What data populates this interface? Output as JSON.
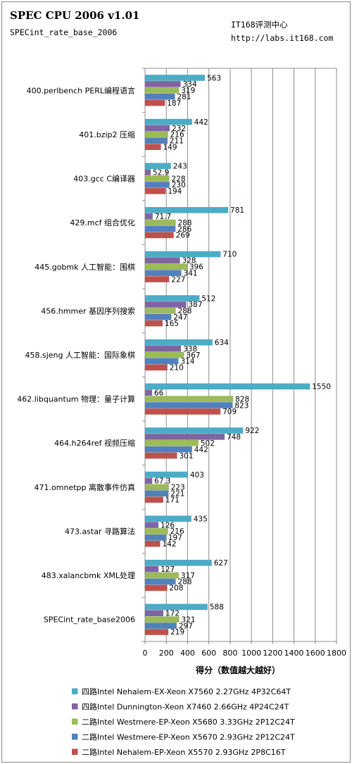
{
  "header": {
    "title": "SPEC CPU 2006 v1.01",
    "subtitle": "SPECint_rate_base_2006",
    "source_name": "IT168评测中心",
    "source_url": "http://labs.it168.com"
  },
  "chart_data": {
    "type": "bar",
    "orientation": "horizontal",
    "title": "SPEC CPU 2006 v1.01",
    "subtitle": "SPECint_rate_base_2006",
    "xlabel": "得分（数值越大越好）",
    "ylabel": "",
    "xlim": [
      0,
      1800
    ],
    "xticks": [
      0,
      200,
      400,
      600,
      800,
      1000,
      1200,
      1400,
      1600,
      1800
    ],
    "grid": true,
    "legend_position": "bottom",
    "categories": [
      "400.perlbench PERL编程语言",
      "401.bzip2 压缩",
      "403.gcc C编译器",
      "429.mcf 组合优化",
      "445.gobmk 人工智能：围棋",
      "456.hmmer 基因序列搜索",
      "458.sjeng 人工智能：国际象棋",
      "462.libquantum 物理：量子计算",
      "464.h264ref 视频压缩",
      "471.omnetpp 离散事件仿真",
      "473.astar 寻路算法",
      "483.xalancbmk XML处理",
      "SPECint_rate_base2006"
    ],
    "series": [
      {
        "name": "四路Intel Nehalem-EX-Xeon X7560 2.27GHz 4P32C64T",
        "color": "#4bacc6",
        "values": [
          563,
          442,
          243,
          781,
          710,
          512,
          634,
          1550,
          922,
          403,
          435,
          627,
          588
        ],
        "labels": [
          "563",
          "442",
          "243",
          "781",
          "710",
          "512",
          "634",
          "1550",
          "922",
          "403",
          "435",
          "627",
          "588"
        ]
      },
      {
        "name": "四路Intel Dunnington-Xeon X7460 2.66GHz 4P24C24T",
        "color": "#8064a2",
        "values": [
          334,
          232,
          52.9,
          71.7,
          328,
          387,
          338,
          66,
          748,
          67.3,
          126,
          127,
          172
        ],
        "labels": [
          "334",
          "232",
          "52.9",
          "71.7",
          "328",
          "387",
          "338",
          "66",
          "748",
          "67.3",
          "126",
          "127",
          "172"
        ]
      },
      {
        "name": "二路Intel Westmere-EP-Xeon X5680 3.33GHz 2P12C24T",
        "color": "#9bbb59",
        "values": [
          319,
          216,
          228,
          288,
          396,
          288,
          367,
          828,
          502,
          223,
          216,
          317,
          321
        ],
        "labels": [
          "319",
          "216",
          "228",
          "288",
          "396",
          "288",
          "367",
          "828",
          "502",
          "223",
          "216",
          "317",
          "321"
        ]
      },
      {
        "name": "二路Intel Westmere-EP-Xeon X5670 2.93GHz 2P12C24T",
        "color": "#4f81bd",
        "values": [
          281,
          211,
          230,
          286,
          341,
          247,
          314,
          823,
          442,
          221,
          197,
          288,
          297
        ],
        "labels": [
          "281",
          "211",
          "230",
          "286",
          "341",
          "247",
          "314",
          "823",
          "442",
          "221",
          "197",
          "288",
          "297"
        ]
      },
      {
        "name": "二路Intel Nehalem-EP-Xeon X5570 2.93GHz 2P8C16T",
        "color": "#c0504d",
        "values": [
          187,
          149,
          194,
          269,
          227,
          165,
          210,
          709,
          301,
          171,
          142,
          208,
          219
        ],
        "labels": [
          "187",
          "149",
          "194",
          "269",
          "227",
          "165",
          "210",
          "709",
          "301",
          "171",
          "142",
          "208",
          "219"
        ]
      }
    ]
  }
}
